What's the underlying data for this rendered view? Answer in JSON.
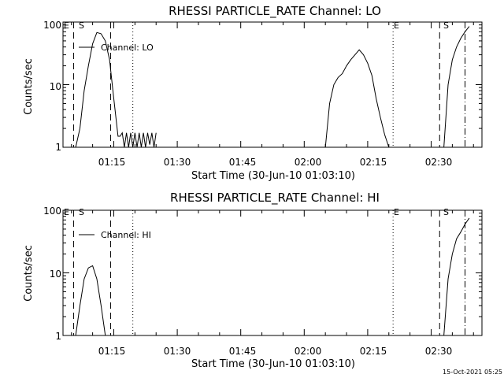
{
  "chart_data": [
    {
      "type": "line",
      "title": "RHESSI PARTICLE_RATE Channel: LO",
      "xlabel": "Start Time (30-Jun-10 01:03:10)",
      "ylabel": "Counts/sec",
      "yscale": "log",
      "xlim": [
        "01:03",
        "02:42"
      ],
      "ylim": [
        1,
        100
      ],
      "x_ticks": [
        "01:15",
        "01:30",
        "01:45",
        "02:00",
        "02:15",
        "02:30"
      ],
      "y_ticks": [
        "1",
        "10",
        "100"
      ],
      "grid": false,
      "legend": {
        "placement": "top-left",
        "entries": [
          "Channel: LO"
        ]
      },
      "series": [
        {
          "name": "Channel: LO",
          "x": [
            "01:06:00",
            "01:07:00",
            "01:08:00",
            "01:09:00",
            "01:10:00",
            "01:11:00",
            "01:12:00",
            "01:13:00",
            "01:14:00",
            "01:15:00",
            "01:16:00",
            "01:16:30",
            "01:17:00",
            "01:17:30",
            "01:18:00",
            "01:18:30",
            "01:19:00",
            "01:19:30",
            "01:20:00",
            "01:20:30",
            "01:21:00",
            "01:21:30",
            "01:22:00",
            "01:22:30",
            "01:23:00",
            "01:23:30",
            "01:24:00",
            "01:24:30",
            "01:25:00",
            "02:05:00",
            "02:06:00",
            "02:07:00",
            "02:08:00",
            "02:09:00",
            "02:10:00",
            "02:11:00",
            "02:12:00",
            "02:13:00",
            "02:14:00",
            "02:15:00",
            "02:16:00",
            "02:17:00",
            "02:18:00",
            "02:19:00",
            "02:20:00",
            "02:33:00",
            "02:34:00",
            "02:35:00",
            "02:36:00",
            "02:37:00",
            "02:38:00",
            "02:39:00"
          ],
          "values": [
            1,
            2,
            8,
            20,
            45,
            68,
            65,
            50,
            25,
            6,
            1.5,
            1.5,
            1.7,
            1,
            1.7,
            1,
            1.7,
            1,
            1.7,
            1,
            1.7,
            1,
            1.7,
            1,
            1.7,
            1.1,
            1.7,
            1,
            1.7,
            1,
            5,
            10,
            13,
            15,
            20,
            25,
            30,
            36,
            30,
            22,
            14,
            6,
            3,
            1.6,
            1,
            1,
            10,
            25,
            40,
            55,
            70,
            85
          ]
        }
      ],
      "annotations": [
        {
          "label": "E",
          "x": "01:05:30",
          "style": "dashed"
        },
        {
          "label": "S",
          "x": "01:14:15",
          "style": "dashed"
        },
        {
          "label": "",
          "x": "01:19:30",
          "style": "dotted"
        },
        {
          "label": "E",
          "x": "02:21:00",
          "style": "dotted"
        },
        {
          "label": "S",
          "x": "02:32:00",
          "style": "dashed"
        },
        {
          "label": "",
          "x": "02:38:00",
          "style": "dashdot"
        }
      ]
    },
    {
      "type": "line",
      "title": "RHESSI PARTICLE_RATE Channel: HI",
      "xlabel": "Start Time (30-Jun-10 01:03:10)",
      "ylabel": "Counts/sec",
      "yscale": "log",
      "xlim": [
        "01:03",
        "02:42"
      ],
      "ylim": [
        1,
        100
      ],
      "x_ticks": [
        "01:15",
        "01:30",
        "01:45",
        "02:00",
        "02:15",
        "02:30"
      ],
      "y_ticks": [
        "1",
        "10",
        "100"
      ],
      "grid": false,
      "legend": {
        "placement": "top-left",
        "entries": [
          "Channel: HI"
        ]
      },
      "series": [
        {
          "name": "Channel: HI",
          "x": [
            "01:06:00",
            "01:07:00",
            "01:08:00",
            "01:09:00",
            "01:10:00",
            "01:11:00",
            "01:12:00",
            "01:13:00",
            "02:33:00",
            "02:34:00",
            "02:35:00",
            "02:36:00",
            "02:37:00",
            "02:38:00",
            "02:39:00"
          ],
          "values": [
            1,
            3,
            8,
            12,
            13,
            8,
            3,
            1,
            1,
            8,
            20,
            35,
            45,
            60,
            75
          ]
        }
      ],
      "annotations": [
        {
          "label": "E",
          "x": "01:05:30",
          "style": "dashed"
        },
        {
          "label": "S",
          "x": "01:14:15",
          "style": "dashed"
        },
        {
          "label": "",
          "x": "01:19:30",
          "style": "dotted"
        },
        {
          "label": "E",
          "x": "02:21:00",
          "style": "dotted"
        },
        {
          "label": "S",
          "x": "02:32:00",
          "style": "dashed"
        },
        {
          "label": "",
          "x": "02:38:00",
          "style": "dashdot"
        }
      ]
    }
  ],
  "footer": {
    "timestamp": "15-Oct-2021 05:25"
  }
}
